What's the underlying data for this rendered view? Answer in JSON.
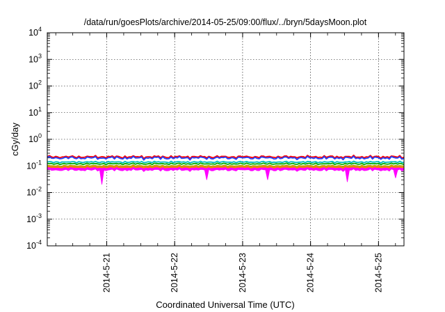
{
  "chart_data": {
    "type": "line",
    "title": "/data/run/goesPlots/archive/2014-05-25/09:00/flux/../bryn/5daysMoon.plot",
    "xlabel": "Coordinated Universal Time (UTC)",
    "ylabel": "cGy/day",
    "y_scale": "log",
    "ylim": [
      0.0001,
      10000
    ],
    "xlim": [
      "2014-05-20 03:00",
      "2014-05-25 09:00"
    ],
    "grid": true,
    "y_ticks": [
      {
        "base": "10",
        "exp": "-4"
      },
      {
        "base": "10",
        "exp": "-3"
      },
      {
        "base": "10",
        "exp": "-2"
      },
      {
        "base": "10",
        "exp": "-1"
      },
      {
        "base": "10",
        "exp": "0"
      },
      {
        "base": "10",
        "exp": "1"
      },
      {
        "base": "10",
        "exp": "2"
      },
      {
        "base": "10",
        "exp": "3"
      },
      {
        "base": "10",
        "exp": "4"
      }
    ],
    "x_ticks": [
      "2014-5-21",
      "2014-5-22",
      "2014-5-23",
      "2014-5-24",
      "2014-5-25"
    ],
    "series": [
      {
        "color": "#ff00ff",
        "style": "filled band",
        "level": 0.085,
        "spread": 0.09,
        "dips": [
          [
            "2014-05-20 22:00",
            0.02
          ],
          [
            "2014-05-22 11:30",
            0.03
          ],
          [
            "2014-05-23 09:00",
            0.03
          ],
          [
            "2014-05-24 13:00",
            0.025
          ],
          [
            "2014-05-25 06:00",
            0.035
          ]
        ]
      },
      {
        "color": "#ff8000",
        "level": 0.09,
        "spread": 0.05
      },
      {
        "color": "#c0a000",
        "level": 0.1,
        "spread": 0.05
      },
      {
        "color": "#00b000",
        "level": 0.12,
        "spread": 0.05
      },
      {
        "color": "#00c0c0",
        "level": 0.14,
        "spread": 0.05
      },
      {
        "color": "#ff0000",
        "level": 0.22,
        "spread": 0.1
      },
      {
        "color": "#2040ff",
        "level": 0.2,
        "spread": 0.12
      }
    ]
  }
}
